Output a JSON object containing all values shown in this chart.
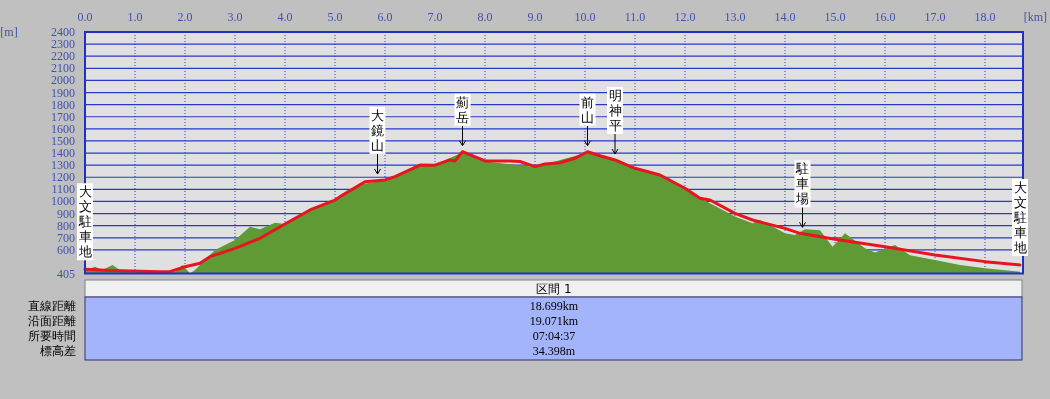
{
  "chart_data": {
    "type": "area",
    "xlabel": "[km]",
    "ylabel": "[m]",
    "xlim": [
      0,
      18.76
    ],
    "ylim": [
      405,
      2400
    ],
    "xticks": [
      {
        "value": 0,
        "label": "0.0"
      },
      {
        "value": 1,
        "label": "1.0"
      },
      {
        "value": 2,
        "label": "2.0"
      },
      {
        "value": 3,
        "label": "3.0"
      },
      {
        "value": 4,
        "label": "4.0"
      },
      {
        "value": 5,
        "label": "5.0"
      },
      {
        "value": 6,
        "label": "6.0"
      },
      {
        "value": 7,
        "label": "7.0"
      },
      {
        "value": 8,
        "label": "8.0"
      },
      {
        "value": 9,
        "label": "9.0"
      },
      {
        "value": 10,
        "label": "10.0"
      },
      {
        "value": 11,
        "label": "11.0"
      },
      {
        "value": 12,
        "label": "12.0"
      },
      {
        "value": 13,
        "label": "13.0"
      },
      {
        "value": 14,
        "label": "14.0"
      },
      {
        "value": 15,
        "label": "15.0"
      },
      {
        "value": 16,
        "label": "16.0"
      },
      {
        "value": 17,
        "label": "17.0"
      },
      {
        "value": 18,
        "label": "18.0"
      }
    ],
    "yticks": [
      405,
      600,
      700,
      800,
      900,
      1000,
      1100,
      1200,
      1300,
      1400,
      1500,
      1600,
      1700,
      1800,
      1900,
      2000,
      2100,
      2200,
      2300,
      2400
    ],
    "grid": true,
    "series": [
      {
        "type": "area",
        "color": "#5f9a35",
        "x": [
          0,
          0.2,
          0.35,
          0.55,
          0.7,
          1.0,
          1.5,
          1.8,
          1.95,
          2.1,
          2.2,
          2.6,
          3.0,
          3.3,
          3.5,
          3.8,
          4.0,
          4.5,
          5.0,
          5.5,
          6.0,
          6.7,
          7.0,
          7.55,
          8.0,
          9.0,
          10.05,
          10.6,
          11.0,
          11.5,
          12.0,
          12.5,
          13.0,
          13.35,
          13.5,
          14.0,
          14.2,
          14.4,
          14.7,
          14.95,
          15.2,
          15.6,
          15.8,
          16.2,
          16.5,
          17.0,
          17.5,
          18.0,
          18.7
        ],
        "values": [
          430,
          461,
          434,
          476,
          434,
          425,
          417,
          420,
          476,
          405,
          434,
          600,
          682,
          792,
          770,
          825,
          814,
          930,
          1010,
          1140,
          1175,
          1300,
          1305,
          1405,
          1330,
          1285,
          1405,
          1340,
          1270,
          1215,
          1100,
          985,
          875,
          820,
          847,
          737,
          723,
          770,
          762,
          627,
          737,
          613,
          578,
          640,
          555,
          517,
          476,
          448,
          420
        ]
      },
      {
        "type": "line",
        "color": "#e8141e",
        "x": [
          0,
          0.5,
          1.5,
          1.7,
          2.0,
          2.3,
          2.5,
          3.0,
          3.5,
          4.0,
          4.5,
          5.0,
          5.1,
          5.6,
          6.0,
          6.2,
          6.7,
          7.0,
          7.3,
          7.4,
          7.55,
          8.0,
          8.5,
          8.7,
          9.0,
          9.2,
          9.5,
          9.8,
          10.05,
          10.3,
          10.6,
          11.0,
          11.5,
          12.0,
          12.3,
          12.5,
          13.0,
          13.35,
          14.0,
          14.3,
          15.0,
          16.0,
          17.0,
          18.0,
          18.7
        ],
        "values": [
          440,
          430,
          420,
          420,
          461,
          489,
          544,
          613,
          696,
          814,
          930,
          1012,
          1040,
          1163,
          1178,
          1205,
          1301,
          1300,
          1343,
          1335,
          1411,
          1335,
          1335,
          1330,
          1288,
          1310,
          1320,
          1357,
          1411,
          1378,
          1343,
          1274,
          1219,
          1109,
          1027,
          1012,
          902,
          847,
          778,
          737,
          688,
          626,
          558,
          503,
          476
        ]
      }
    ],
    "annotations": [
      {
        "text": "大文駐車地",
        "x": 0,
        "y": 440
      },
      {
        "text": "大鏡山",
        "x": 5.85,
        "y": 1178
      },
      {
        "text": "薊岳",
        "x": 7.55,
        "y": 1411
      },
      {
        "text": "前山",
        "x": 10.05,
        "y": 1411
      },
      {
        "text": "明神平",
        "x": 10.6,
        "y": 1343
      },
      {
        "text": "駐車場",
        "x": 14.35,
        "y": 737
      },
      {
        "text": "大文駐車地",
        "x": 18.7,
        "y": 476
      },
      "区間 1",
      "直線距離",
      "18.699km",
      "沿面距離",
      "19.071km",
      "所要時間",
      "07:04:37",
      "標高差",
      "34.398m"
    ]
  }
}
